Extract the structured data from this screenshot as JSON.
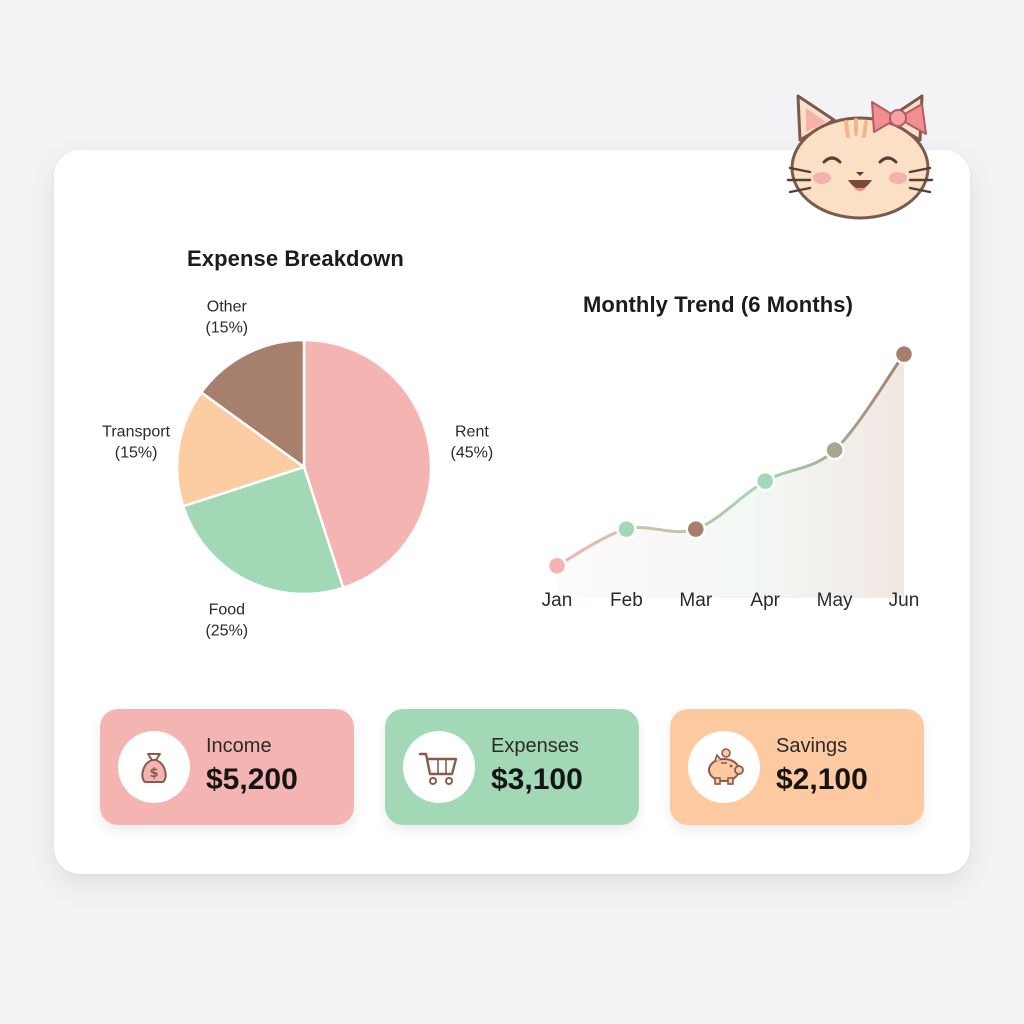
{
  "chart_data": [
    {
      "type": "pie",
      "title": "Expense Breakdown",
      "slices": [
        {
          "name": "Rent",
          "value": 45,
          "percent_label": "(45%)",
          "color": "#f4b4b2"
        },
        {
          "name": "Food",
          "value": 25,
          "percent_label": "(25%)",
          "color": "#a3d8b7"
        },
        {
          "name": "Transport",
          "value": 15,
          "percent_label": "(15%)",
          "color": "#fccda2"
        },
        {
          "name": "Other",
          "value": 15,
          "percent_label": "(15%)",
          "color": "#a67f6d"
        }
      ]
    },
    {
      "type": "line",
      "title": "Monthly Trend (6 Months)",
      "x": [
        "Jan",
        "Feb",
        "Mar",
        "Apr",
        "May",
        "Jun"
      ],
      "values": [
        1,
        2.3,
        2.3,
        4,
        5.1,
        8.5
      ],
      "point_colors": [
        "#f4b4b2",
        "#a3d8b7",
        "#a67f6d",
        "#a3d8b7",
        "#a8a591",
        "#a67f6d"
      ],
      "ylim": [
        0,
        9
      ],
      "grid": false,
      "legend": "none"
    }
  ],
  "summary": [
    {
      "label": "Income",
      "value": "$5,200",
      "icon": "money-bag-icon",
      "color": "#f4b4b2"
    },
    {
      "label": "Expenses",
      "value": "$3,100",
      "icon": "shopping-cart-icon",
      "color": "#a3d8b7"
    },
    {
      "label": "Savings",
      "value": "$2,100",
      "icon": "piggy-bank-icon",
      "color": "#fcc9a0"
    }
  ],
  "mascot": {
    "icon": "cat-mascot-icon"
  }
}
